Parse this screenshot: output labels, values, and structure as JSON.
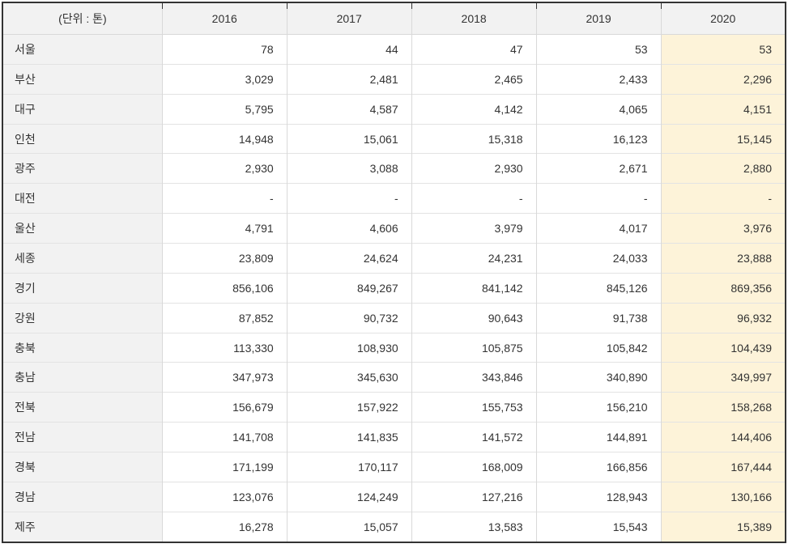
{
  "table": {
    "unit_label": "(단위 : 톤)",
    "columns": [
      "2016",
      "2017",
      "2018",
      "2019",
      "2020"
    ],
    "rows": [
      {
        "region": "서울",
        "values": [
          "78",
          "44",
          "47",
          "53",
          "53"
        ]
      },
      {
        "region": "부산",
        "values": [
          "3,029",
          "2,481",
          "2,465",
          "2,433",
          "2,296"
        ]
      },
      {
        "region": "대구",
        "values": [
          "5,795",
          "4,587",
          "4,142",
          "4,065",
          "4,151"
        ]
      },
      {
        "region": "인천",
        "values": [
          "14,948",
          "15,061",
          "15,318",
          "16,123",
          "15,145"
        ]
      },
      {
        "region": "광주",
        "values": [
          "2,930",
          "3,088",
          "2,930",
          "2,671",
          "2,880"
        ]
      },
      {
        "region": "대전",
        "values": [
          "-",
          "-",
          "-",
          "-",
          "-"
        ]
      },
      {
        "region": "울산",
        "values": [
          "4,791",
          "4,606",
          "3,979",
          "4,017",
          "3,976"
        ]
      },
      {
        "region": "세종",
        "values": [
          "23,809",
          "24,624",
          "24,231",
          "24,033",
          "23,888"
        ]
      },
      {
        "region": "경기",
        "values": [
          "856,106",
          "849,267",
          "841,142",
          "845,126",
          "869,356"
        ]
      },
      {
        "region": "강원",
        "values": [
          "87,852",
          "90,732",
          "90,643",
          "91,738",
          "96,932"
        ]
      },
      {
        "region": "충북",
        "values": [
          "113,330",
          "108,930",
          "105,875",
          "105,842",
          "104,439"
        ]
      },
      {
        "region": "충남",
        "values": [
          "347,973",
          "345,630",
          "343,846",
          "340,890",
          "349,997"
        ]
      },
      {
        "region": "전북",
        "values": [
          "156,679",
          "157,922",
          "155,753",
          "156,210",
          "158,268"
        ]
      },
      {
        "region": "전남",
        "values": [
          "141,708",
          "141,835",
          "141,572",
          "144,891",
          "144,406"
        ]
      },
      {
        "region": "경북",
        "values": [
          "171,199",
          "170,117",
          "168,009",
          "166,856",
          "167,444"
        ]
      },
      {
        "region": "경남",
        "values": [
          "123,076",
          "124,249",
          "127,216",
          "128,943",
          "130,166"
        ]
      },
      {
        "region": "제주",
        "values": [
          "16,278",
          "15,057",
          "13,583",
          "15,543",
          "15,389"
        ]
      }
    ],
    "colors": {
      "outer_border": "#333333",
      "inner_border": "#d9d9d9",
      "row_border": "#e3e3e3",
      "header_bg": "#f2f2f2",
      "region_column_bg": "#f2f2f2",
      "highlight_2020_bg": "#fdf3d9",
      "text": "#333333"
    }
  }
}
